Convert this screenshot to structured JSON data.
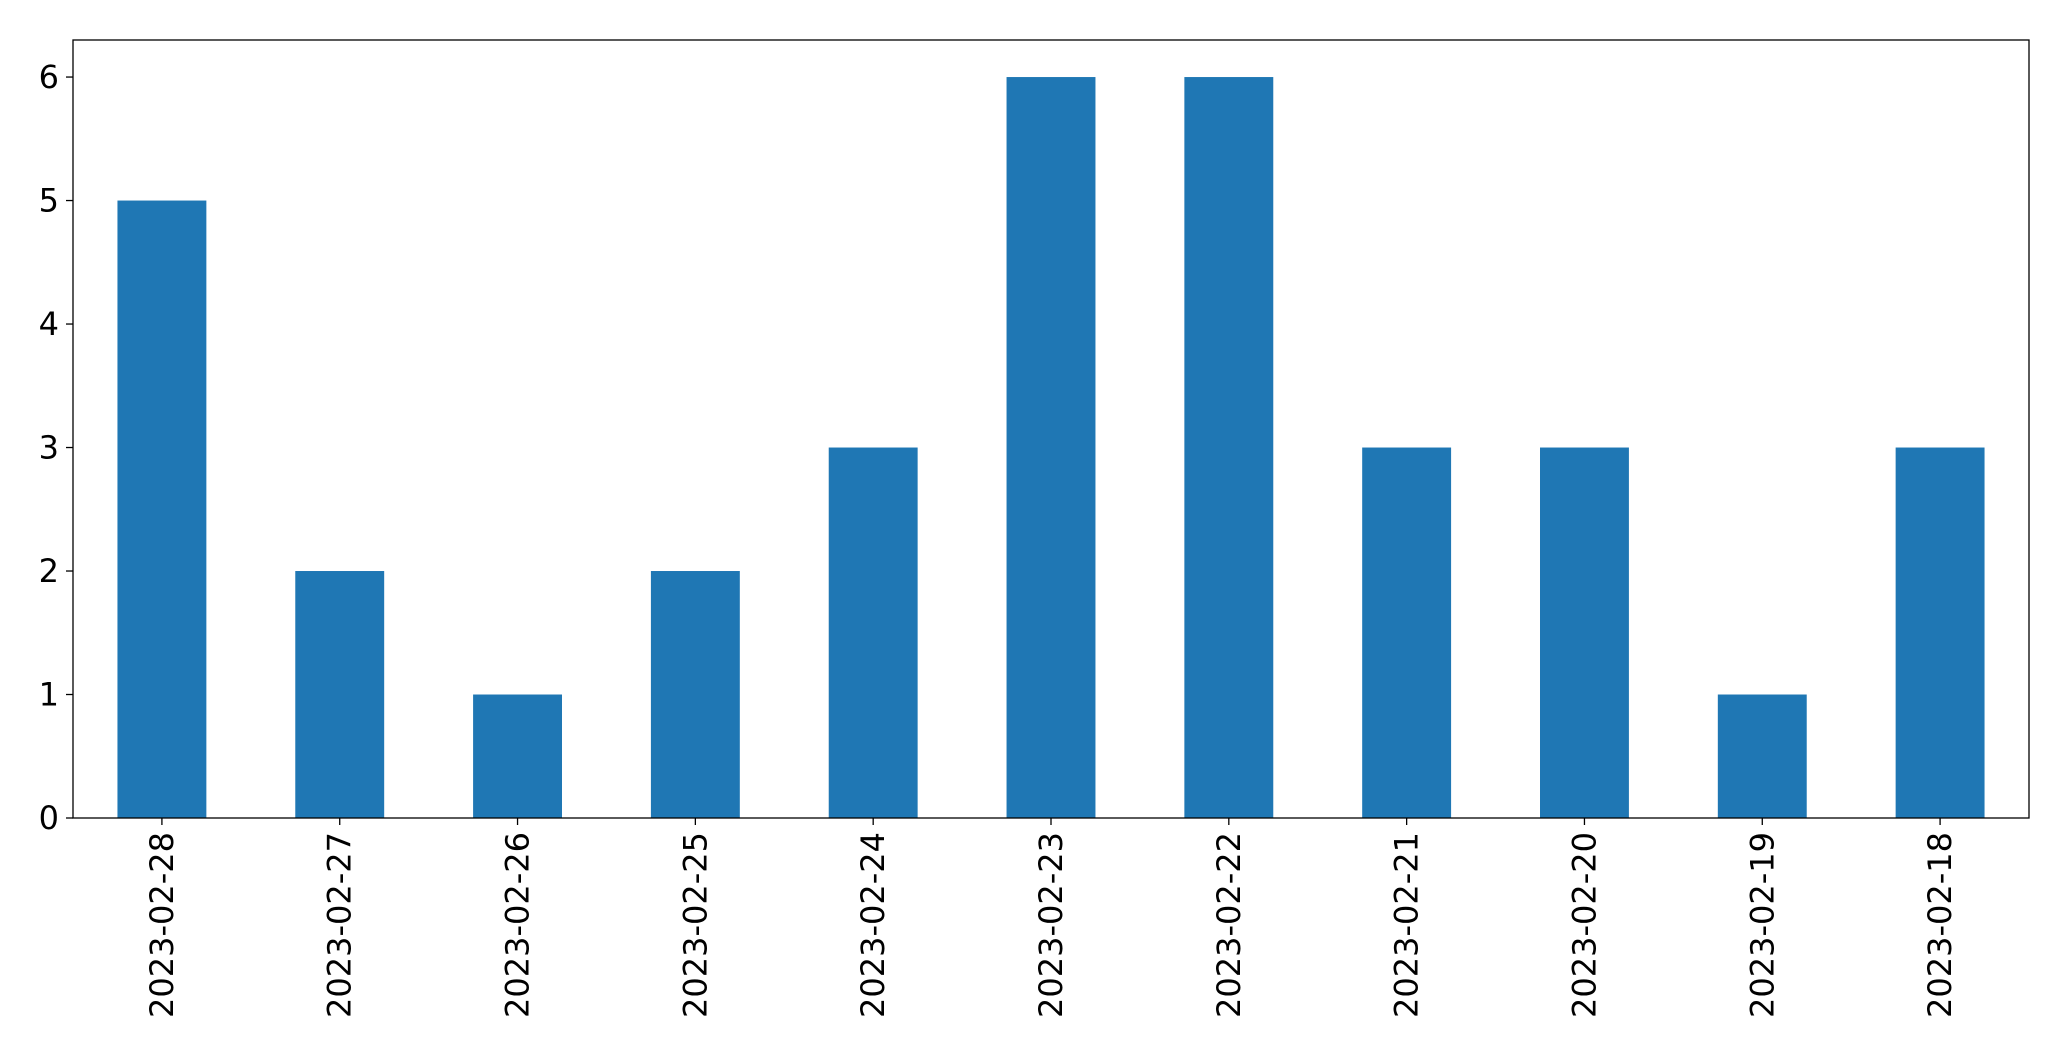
{
  "chart_data": {
    "type": "bar",
    "categories": [
      "2023-02-28",
      "2023-02-27",
      "2023-02-26",
      "2023-02-25",
      "2023-02-24",
      "2023-02-23",
      "2023-02-22",
      "2023-02-21",
      "2023-02-20",
      "2023-02-19",
      "2023-02-18"
    ],
    "values": [
      5,
      2,
      1,
      2,
      3,
      6,
      6,
      3,
      3,
      1,
      3
    ],
    "color": "#1f77b4",
    "ylim": [
      0,
      6.3
    ],
    "yticks": [
      0,
      1,
      2,
      3,
      4,
      5,
      6
    ],
    "grid": false
  }
}
